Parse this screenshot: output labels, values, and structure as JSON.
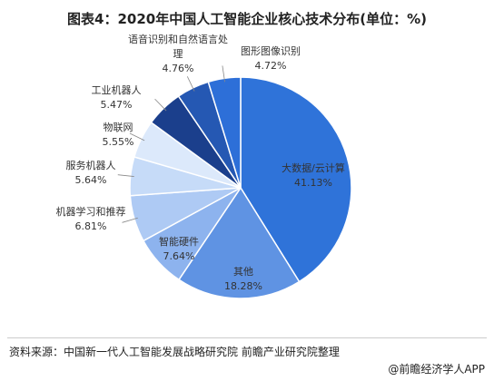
{
  "chart_data": {
    "type": "pie",
    "title": "图表4：2020年中国人工智能企业核心技术分布(单位：%)",
    "categories": [
      "大数据/云计算",
      "其他",
      "智能硬件",
      "机器学习和推荐",
      "服务机器人",
      "物联网",
      "工业机器人",
      "语音识别和自然语言处理",
      "图形图像识别"
    ],
    "values": [
      41.13,
      18.28,
      7.64,
      6.81,
      5.64,
      5.55,
      5.47,
      4.76,
      4.72
    ],
    "value_labels": [
      "41.13%",
      "18.28%",
      "7.64%",
      "6.81%",
      "5.64%",
      "5.55%",
      "5.47%",
      "4.76%",
      "4.72%"
    ],
    "colors": [
      "#2f73d9",
      "#5f93e3",
      "#8db3ee",
      "#aecaf4",
      "#c6dbf8",
      "#dce9fb",
      "#1b3f8c",
      "#2558b3",
      "#2d6fd8"
    ],
    "source": "资料来源：中国新一代人工智能发展战略研究院 前瞻产业研究院整理",
    "watermark": "@前瞻经济学人APP"
  }
}
